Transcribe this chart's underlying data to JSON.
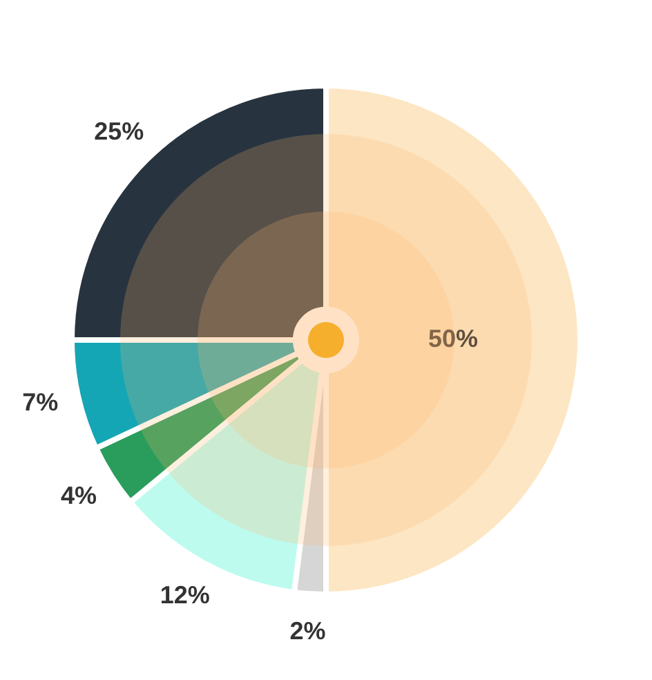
{
  "chart_data": {
    "type": "donut",
    "categories": [
      null,
      null,
      null,
      null,
      null,
      null
    ],
    "values": [
      50,
      2,
      12,
      4,
      7,
      25
    ],
    "colors": [
      "#fde6c3",
      "#d6d6d6",
      "#bdfbef",
      "#2a9d5c",
      "#14a6b5",
      "#27343f"
    ],
    "value_labels": [
      "50%",
      "2%",
      "12%",
      "4%",
      "7%",
      "25%"
    ],
    "legend": false
  }
}
